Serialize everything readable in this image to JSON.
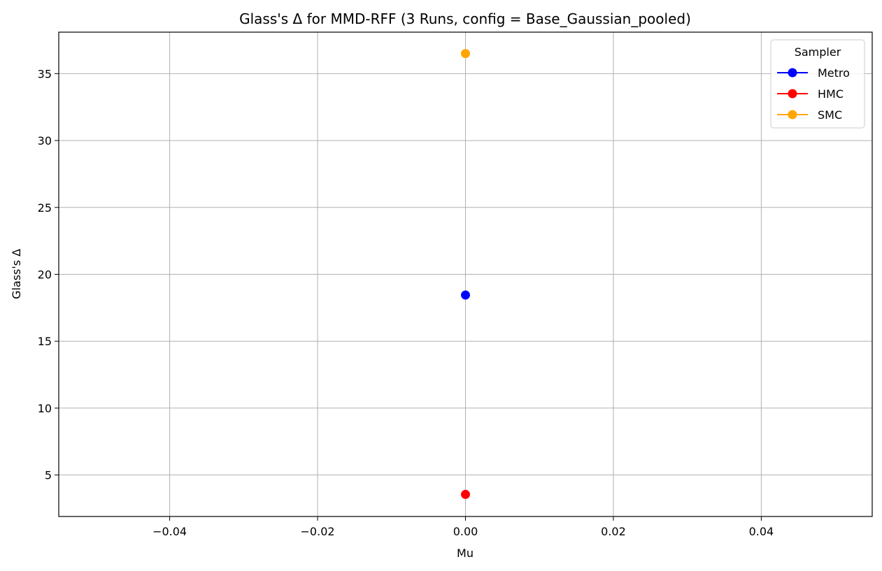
{
  "chart_data": {
    "type": "line",
    "title": "Glass's Δ for MMD-RFF (3 Runs, config = Base_Gaussian_pooled)",
    "xlabel": "Mu",
    "ylabel": "Glass's Δ",
    "xlim": [
      -0.055,
      0.055
    ],
    "ylim": [
      1.9,
      38.1
    ],
    "xticks": [
      -0.04,
      -0.02,
      0.0,
      0.02,
      0.04
    ],
    "xtick_labels": [
      "−0.04",
      "−0.02",
      "0.00",
      "0.02",
      "0.04"
    ],
    "yticks": [
      5,
      10,
      15,
      20,
      25,
      30,
      35
    ],
    "ytick_labels": [
      "5",
      "10",
      "15",
      "20",
      "25",
      "30",
      "35"
    ],
    "grid": true,
    "legend": {
      "title": "Sampler",
      "position": "top-right"
    },
    "series": [
      {
        "name": "Metro",
        "color": "#0000ff",
        "x": [
          0.0
        ],
        "y": [
          18.45
        ]
      },
      {
        "name": "HMC",
        "color": "#ff0000",
        "x": [
          0.0
        ],
        "y": [
          3.55
        ]
      },
      {
        "name": "SMC",
        "color": "#ffa500",
        "x": [
          0.0
        ],
        "y": [
          36.5
        ]
      }
    ]
  }
}
